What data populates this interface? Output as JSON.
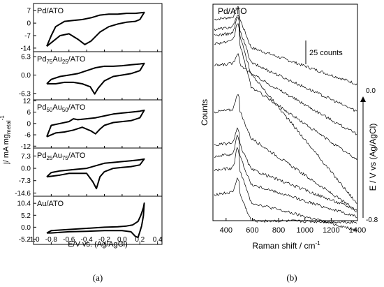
{
  "chart_data": [
    {
      "type": "line",
      "figure_caption": "(a)",
      "xlabel": "E/V vs. (Ag/AgCl)",
      "ylabel_main": "j/ mA mg",
      "ylabel_sub": "metal",
      "ylabel_sup": "-1",
      "xlim": [
        -1.0,
        0.45
      ],
      "xticks": [
        "-1.0",
        "-0.8",
        "-0.6",
        "-0.4",
        "-0.2",
        "0.0",
        "0.2",
        "0.4"
      ],
      "xtick_values": [
        -1.0,
        -0.8,
        -0.6,
        -0.4,
        -0.2,
        0.0,
        0.2,
        0.4
      ],
      "panels": [
        {
          "name": "Pd/ATO",
          "label_parts": [
            [
              "Pd/ATO",
              ""
            ]
          ],
          "ylim": [
            -16,
            11
          ],
          "yticks": [
            "7",
            "0",
            "-7",
            "-14"
          ],
          "ytick_values": [
            7,
            0,
            -7,
            -14
          ],
          "upper": [
            [
              -0.85,
              -13
            ],
            [
              -0.8,
              -7
            ],
            [
              -0.75,
              -2
            ],
            [
              -0.65,
              1
            ],
            [
              -0.55,
              1.5
            ],
            [
              -0.45,
              2
            ],
            [
              -0.35,
              3
            ],
            [
              -0.25,
              4.5
            ],
            [
              -0.15,
              5
            ],
            [
              -0.05,
              5
            ],
            [
              0.05,
              5.5
            ],
            [
              0.15,
              5.5
            ],
            [
              0.25,
              6
            ]
          ],
          "lower": [
            [
              0.25,
              6
            ],
            [
              0.2,
              2
            ],
            [
              0.15,
              1
            ],
            [
              0.05,
              0.5
            ],
            [
              -0.05,
              -0.5
            ],
            [
              -0.15,
              -2
            ],
            [
              -0.25,
              -5
            ],
            [
              -0.35,
              -10
            ],
            [
              -0.42,
              -12
            ],
            [
              -0.5,
              -9
            ],
            [
              -0.6,
              -6
            ],
            [
              -0.7,
              -7
            ],
            [
              -0.8,
              -11
            ],
            [
              -0.85,
              -13
            ]
          ]
        },
        {
          "name": "Pd75Au25/ATO",
          "label_parts": [
            [
              "Pd",
              ""
            ],
            [
              "75",
              "sub"
            ],
            [
              "Au",
              ""
            ],
            [
              "25",
              "sub"
            ],
            [
              "/ATO",
              ""
            ]
          ],
          "ylim": [
            -8.5,
            8
          ],
          "yticks": [
            "6.3",
            "0.0",
            "-6.3"
          ],
          "ytick_values": [
            6.3,
            0.0,
            -6.3
          ],
          "upper": [
            [
              -0.85,
              -3
            ],
            [
              -0.8,
              -1.5
            ],
            [
              -0.7,
              -0.5
            ],
            [
              -0.6,
              0
            ],
            [
              -0.5,
              0.5
            ],
            [
              -0.4,
              1.5
            ],
            [
              -0.3,
              2.5
            ],
            [
              -0.2,
              3
            ],
            [
              -0.1,
              3
            ],
            [
              0.0,
              3.2
            ],
            [
              0.1,
              3.5
            ],
            [
              0.2,
              3.8
            ],
            [
              0.25,
              4
            ]
          ],
          "lower": [
            [
              0.25,
              4
            ],
            [
              0.2,
              1.5
            ],
            [
              0.1,
              0.5
            ],
            [
              0.0,
              0
            ],
            [
              -0.1,
              -0.5
            ],
            [
              -0.2,
              -2
            ],
            [
              -0.27,
              -4.5
            ],
            [
              -0.31,
              -6.5
            ],
            [
              -0.36,
              -4
            ],
            [
              -0.45,
              -3
            ],
            [
              -0.55,
              -2.5
            ],
            [
              -0.65,
              -2.5
            ],
            [
              -0.75,
              -3
            ],
            [
              -0.85,
              -3
            ]
          ]
        },
        {
          "name": "Pd50Au50/ATO",
          "label_parts": [
            [
              "Pd",
              ""
            ],
            [
              "50",
              "sub"
            ],
            [
              "Au",
              ""
            ],
            [
              "50",
              "sub"
            ],
            [
              "/ATO",
              ""
            ]
          ],
          "ylim": [
            -13,
            12.5
          ],
          "yticks": [
            "12",
            "6",
            "0",
            "-6",
            "-12"
          ],
          "ytick_values": [
            12,
            6,
            0,
            -6,
            -12
          ],
          "upper": [
            [
              -0.85,
              -7
            ],
            [
              -0.8,
              -1
            ],
            [
              -0.7,
              0
            ],
            [
              -0.6,
              1
            ],
            [
              -0.55,
              2.5
            ],
            [
              -0.5,
              2
            ],
            [
              -0.4,
              2.5
            ],
            [
              -0.3,
              3
            ],
            [
              -0.2,
              4
            ],
            [
              -0.1,
              5
            ],
            [
              0.0,
              5.5
            ],
            [
              0.1,
              6
            ],
            [
              0.2,
              6.5
            ],
            [
              0.25,
              7
            ]
          ],
          "lower": [
            [
              0.25,
              7
            ],
            [
              0.2,
              3
            ],
            [
              0.1,
              1.5
            ],
            [
              0.0,
              1
            ],
            [
              -0.1,
              0.5
            ],
            [
              -0.2,
              -1
            ],
            [
              -0.25,
              -3
            ],
            [
              -0.3,
              -5.5
            ],
            [
              -0.35,
              -4
            ],
            [
              -0.45,
              -2
            ],
            [
              -0.55,
              -3.5
            ],
            [
              -0.65,
              -4.5
            ],
            [
              -0.75,
              -5
            ],
            [
              -0.85,
              -7
            ]
          ]
        },
        {
          "name": "Pd25Au75/ATO",
          "label_parts": [
            [
              "Pd",
              ""
            ],
            [
              "25",
              "sub"
            ],
            [
              "Au",
              ""
            ],
            [
              "75",
              "sub"
            ],
            [
              "/ATO",
              ""
            ]
          ],
          "ylim": [
            -16.5,
            12
          ],
          "yticks": [
            "7.3",
            "0.0",
            "-7.3",
            "-14.6"
          ],
          "ytick_values": [
            7.3,
            0.0,
            -7.3,
            -14.6
          ],
          "upper": [
            [
              -0.85,
              -5
            ],
            [
              -0.8,
              -2.5
            ],
            [
              -0.7,
              -1.5
            ],
            [
              -0.6,
              -1
            ],
            [
              -0.5,
              -0.5
            ],
            [
              -0.4,
              0
            ],
            [
              -0.3,
              1.5
            ],
            [
              -0.2,
              3
            ],
            [
              -0.1,
              3.5
            ],
            [
              0.0,
              4
            ],
            [
              0.1,
              4.5
            ],
            [
              0.2,
              5
            ],
            [
              0.25,
              5.5
            ]
          ],
          "lower": [
            [
              0.25,
              5.5
            ],
            [
              0.2,
              2
            ],
            [
              0.1,
              1
            ],
            [
              0.0,
              0.5
            ],
            [
              -0.1,
              0
            ],
            [
              -0.2,
              -2
            ],
            [
              -0.25,
              -5
            ],
            [
              -0.29,
              -12
            ],
            [
              -0.33,
              -8
            ],
            [
              -0.4,
              -3
            ],
            [
              -0.5,
              -3
            ],
            [
              -0.6,
              -3
            ],
            [
              -0.7,
              -4
            ],
            [
              -0.85,
              -5
            ]
          ]
        },
        {
          "name": "Au/ATO",
          "label_parts": [
            [
              "Au/ATO",
              ""
            ]
          ],
          "ylim": [
            -7.5,
            13.5
          ],
          "yticks": [
            "10.4",
            "5.2",
            "0.0",
            "-5.2"
          ],
          "ytick_values": [
            10.4,
            5.2,
            0.0,
            -5.2
          ],
          "upper": [
            [
              -0.85,
              -2.5
            ],
            [
              -0.8,
              -1.5
            ],
            [
              -0.6,
              -1
            ],
            [
              -0.4,
              -0.5
            ],
            [
              -0.2,
              0
            ],
            [
              -0.05,
              0.2
            ],
            [
              0.05,
              0.5
            ],
            [
              0.12,
              1
            ],
            [
              0.18,
              2.5
            ],
            [
              0.21,
              5
            ],
            [
              0.24,
              8.5
            ],
            [
              0.25,
              10.5
            ]
          ],
          "lower": [
            [
              0.25,
              10.5
            ],
            [
              0.24,
              5
            ],
            [
              0.22,
              0.5
            ],
            [
              0.2,
              -2
            ],
            [
              0.18,
              -4.5
            ],
            [
              0.15,
              -4
            ],
            [
              0.1,
              -2
            ],
            [
              0.0,
              -1.5
            ],
            [
              -0.2,
              -1.5
            ],
            [
              -0.4,
              -1.8
            ],
            [
              -0.6,
              -2
            ],
            [
              -0.8,
              -2.5
            ],
            [
              -0.85,
              -2.5
            ]
          ]
        }
      ]
    },
    {
      "type": "line",
      "figure_caption": "(b)",
      "title": "Pd/ATO",
      "xlabel": "Raman shift / cm",
      "xlabel_sup": "-1",
      "ylabel": "Counts",
      "right_label": "E / V vs (Ag/AgCl)",
      "right_top_tick": "0.0",
      "right_bottom_tick": "-0.8",
      "scale_bar_label": "25 counts",
      "scale_bar_counts": 25,
      "xlim": [
        300,
        1400
      ],
      "xticks": [
        "400",
        "600",
        "800",
        "1000",
        "1200",
        "1400"
      ],
      "xtick_values": [
        400,
        600,
        800,
        1000,
        1200,
        1400
      ],
      "ylim": [
        0,
        215
      ],
      "series": [
        {
          "y0": 200,
          "peak": 10,
          "drop": 30,
          "slope": 0.045
        },
        {
          "y0": 190,
          "peak": 12,
          "drop": 35,
          "slope": 0.06
        },
        {
          "y0": 184,
          "peak": 16,
          "drop": 40,
          "slope": 0.075
        },
        {
          "y0": 176,
          "peak": 18,
          "drop": 45,
          "slope": 0.09
        },
        {
          "y0": 154,
          "peak": 10,
          "drop": 10,
          "slope": 0.16
        },
        {
          "y0": 108,
          "peak": 16,
          "drop": 28,
          "slope": 0.09
        },
        {
          "y0": 75,
          "peak": 14,
          "drop": 26,
          "slope": 0.05
        },
        {
          "y0": 64,
          "peak": 18,
          "drop": 30,
          "slope": 0.04
        },
        {
          "y0": 50,
          "peak": 20,
          "drop": 34,
          "slope": 0.034
        },
        {
          "y0": 26,
          "peak": 14,
          "drop": 28,
          "slope": 0.002
        }
      ]
    }
  ]
}
